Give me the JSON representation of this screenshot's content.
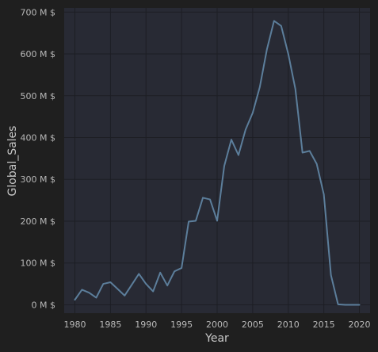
{
  "colors": {
    "page_background": "#1f1f1f",
    "plot_background": "#282a34",
    "grid": "#1d1e24",
    "line": "#5c7e9b",
    "tick_text": "#b8b8b8",
    "axis_label_text": "#c8c8c8"
  },
  "chart_data": {
    "type": "line",
    "title": "",
    "xlabel": "Year",
    "ylabel": "Global_Sales",
    "xlim": [
      1978.5,
      2021.5
    ],
    "ylim": [
      -20,
      710
    ],
    "grid": true,
    "x_ticks": [
      1980,
      1985,
      1990,
      1995,
      2000,
      2005,
      2010,
      2015,
      2020
    ],
    "y_ticks": [
      0,
      100,
      200,
      300,
      400,
      500,
      600,
      700
    ],
    "y_tick_labels": [
      "0 M $",
      "100 M $",
      "200 M $",
      "300 M $",
      "400 M $",
      "500 M $",
      "600 M $",
      "700 M $"
    ],
    "series": [
      {
        "name": "",
        "x": [
          1980,
          1981,
          1982,
          1983,
          1984,
          1985,
          1986,
          1987,
          1988,
          1989,
          1990,
          1991,
          1992,
          1993,
          1994,
          1995,
          1996,
          1997,
          1998,
          1999,
          2000,
          2001,
          2002,
          2003,
          2004,
          2005,
          2006,
          2007,
          2008,
          2009,
          2010,
          2011,
          2012,
          2013,
          2014,
          2015,
          2016,
          2017,
          2018,
          2019,
          2020
        ],
        "y": [
          12,
          36,
          29,
          17,
          50,
          54,
          38,
          22,
          48,
          74,
          50,
          32,
          77,
          46,
          80,
          88,
          199,
          201,
          256,
          252,
          201,
          332,
          395,
          358,
          419,
          459,
          521,
          611,
          679,
          667,
          600,
          516,
          364,
          368,
          337,
          264,
          71,
          1,
          0,
          0,
          0
        ]
      }
    ]
  }
}
